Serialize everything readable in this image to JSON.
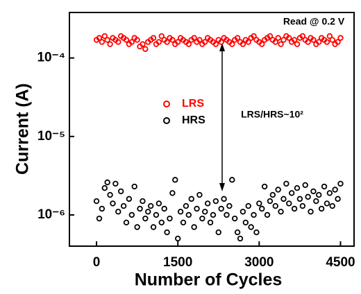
{
  "chart_data": {
    "type": "scatter",
    "xlabel": "Number of Cycles",
    "ylabel": "Current (A)",
    "annotations": [
      "Read @ 0.2 V",
      "LRS/HRS~10²"
    ],
    "log_y": true,
    "legend": "center-left",
    "xlim": [
      -500,
      4750
    ],
    "xticks": [
      0,
      1500,
      3000,
      4500
    ],
    "ylim": [
      4e-07,
      0.00038
    ],
    "yticks": [
      {
        "value": 1e-06,
        "label": "10⁻⁶"
      },
      {
        "value": 1e-05,
        "label": "10⁻⁵"
      },
      {
        "value": 0.0001,
        "label": "10⁻⁴"
      }
    ],
    "x": [
      0,
      50,
      100,
      150,
      200,
      250,
      300,
      350,
      400,
      450,
      500,
      550,
      600,
      650,
      700,
      750,
      800,
      850,
      900,
      950,
      1000,
      1050,
      1100,
      1150,
      1200,
      1250,
      1300,
      1350,
      1400,
      1450,
      1500,
      1550,
      1600,
      1650,
      1700,
      1750,
      1800,
      1850,
      1900,
      1950,
      2000,
      2050,
      2100,
      2150,
      2200,
      2250,
      2300,
      2350,
      2400,
      2450,
      2500,
      2550,
      2600,
      2650,
      2700,
      2750,
      2800,
      2850,
      2900,
      2950,
      3000,
      3050,
      3100,
      3150,
      3200,
      3250,
      3300,
      3350,
      3400,
      3450,
      3500,
      3550,
      3600,
      3650,
      3700,
      3750,
      3800,
      3850,
      3900,
      3950,
      4000,
      4050,
      4100,
      4150,
      4200,
      4250,
      4300,
      4350,
      4400,
      4450,
      4500
    ],
    "series": [
      {
        "name": "LRS",
        "color": "#ff0000",
        "values": [
          0.00017,
          0.00018,
          0.00016,
          0.00019,
          0.00017,
          0.00015,
          0.00018,
          0.00017,
          0.00016,
          0.00019,
          0.00018,
          0.00017,
          0.00015,
          0.00016,
          0.00018,
          0.00017,
          0.00014,
          0.00015,
          0.00013,
          0.00016,
          0.00017,
          0.00018,
          0.00015,
          0.00016,
          0.00019,
          0.00017,
          0.00016,
          0.00018,
          0.00017,
          0.00015,
          0.00016,
          0.00018,
          0.00017,
          0.00016,
          0.00015,
          0.00017,
          0.00018,
          0.00016,
          0.00017,
          0.00015,
          0.00016,
          0.00018,
          0.00017,
          0.00016,
          0.00015,
          0.00017,
          0.00016,
          0.00018,
          0.00017,
          0.00016,
          0.00015,
          0.00017,
          0.00018,
          0.00016,
          0.00015,
          0.00017,
          0.00016,
          0.00018,
          0.00019,
          0.00017,
          0.00016,
          0.00015,
          0.00017,
          0.00018,
          0.00019,
          0.00017,
          0.00016,
          0.00018,
          0.00015,
          0.00017,
          0.00019,
          0.00018,
          0.00016,
          0.00017,
          0.00015,
          0.00018,
          0.00019,
          0.00017,
          0.00016,
          0.00018,
          0.00017,
          0.00015,
          0.00016,
          0.00018,
          0.00017,
          0.00016,
          0.00019,
          0.00017,
          0.00015,
          0.00016,
          0.00018
        ]
      },
      {
        "name": "HRS",
        "color": "#000000",
        "values": [
          1.5e-06,
          9e-07,
          1.2e-06,
          2.2e-06,
          2.6e-06,
          1.8e-06,
          1.4e-06,
          2.5e-06,
          1.1e-06,
          2e-06,
          1.3e-06,
          8e-07,
          1.6e-06,
          1e-06,
          2.3e-06,
          7e-07,
          1.2e-06,
          1.5e-06,
          9e-07,
          1.1e-06,
          1.3e-06,
          7e-07,
          1e-06,
          1.4e-06,
          8e-07,
          1.2e-06,
          6e-07,
          9e-07,
          1.9e-06,
          2.8e-06,
          5e-07,
          1.1e-06,
          8e-07,
          1.3e-06,
          1e-06,
          1.6e-06,
          7e-07,
          1.2e-06,
          1.8e-06,
          9e-07,
          1.1e-06,
          1.4e-06,
          8e-07,
          1e-06,
          1.5e-06,
          6e-07,
          1.2e-06,
          1.6e-06,
          1e-06,
          1.3e-06,
          2.8e-06,
          9e-07,
          6e-07,
          5e-07,
          1.1e-06,
          8e-07,
          1.3e-06,
          7e-07,
          1e-06,
          6e-07,
          1.4e-06,
          1.2e-06,
          2.3e-06,
          1e-06,
          1.5e-06,
          1.8e-06,
          1.3e-06,
          2.1e-06,
          1.1e-06,
          1.6e-06,
          2.5e-06,
          1.4e-06,
          1.9e-06,
          1.2e-06,
          2.2e-06,
          1.6e-06,
          1.3e-06,
          2.4e-06,
          1.7e-06,
          1.1e-06,
          2e-06,
          1.5e-06,
          1.8e-06,
          1.2e-06,
          2.3e-06,
          1.4e-06,
          1.9e-06,
          1.3e-06,
          2.1e-06,
          1.6e-06,
          2.5e-06
        ]
      }
    ]
  }
}
